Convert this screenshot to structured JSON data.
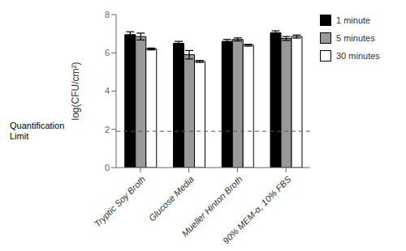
{
  "chart_data": {
    "type": "bar",
    "categories": [
      "Tryptic Soy Broth",
      "Glucose Media",
      "Mueller Hinton Broth",
      "90% MEM-α, 10% FBS"
    ],
    "series": [
      {
        "name": "1 minute",
        "color": "#000000",
        "values": [
          6.95,
          6.5,
          6.6,
          7.05
        ],
        "errors": [
          0.15,
          0.1,
          0.1,
          0.1
        ]
      },
      {
        "name": "5 minutes",
        "color": "#999999",
        "values": [
          6.85,
          5.9,
          6.7,
          6.75
        ],
        "errors": [
          0.18,
          0.22,
          0.08,
          0.1
        ]
      },
      {
        "name": "30 minutes",
        "color": "#ffffff",
        "values": [
          6.2,
          5.55,
          6.4,
          6.85
        ],
        "errors": [
          0.05,
          0.05,
          0.05,
          0.08
        ]
      }
    ],
    "ylabel": "log(CFU/cm²)",
    "ylim": [
      0,
      8
    ],
    "yticks": [
      0,
      2,
      4,
      6,
      8
    ],
    "reference_line": {
      "value": 1.9,
      "label": "Quantification\nLimit",
      "color": "#555555",
      "line_style": "dashed"
    },
    "grid": false,
    "legend": "right"
  }
}
